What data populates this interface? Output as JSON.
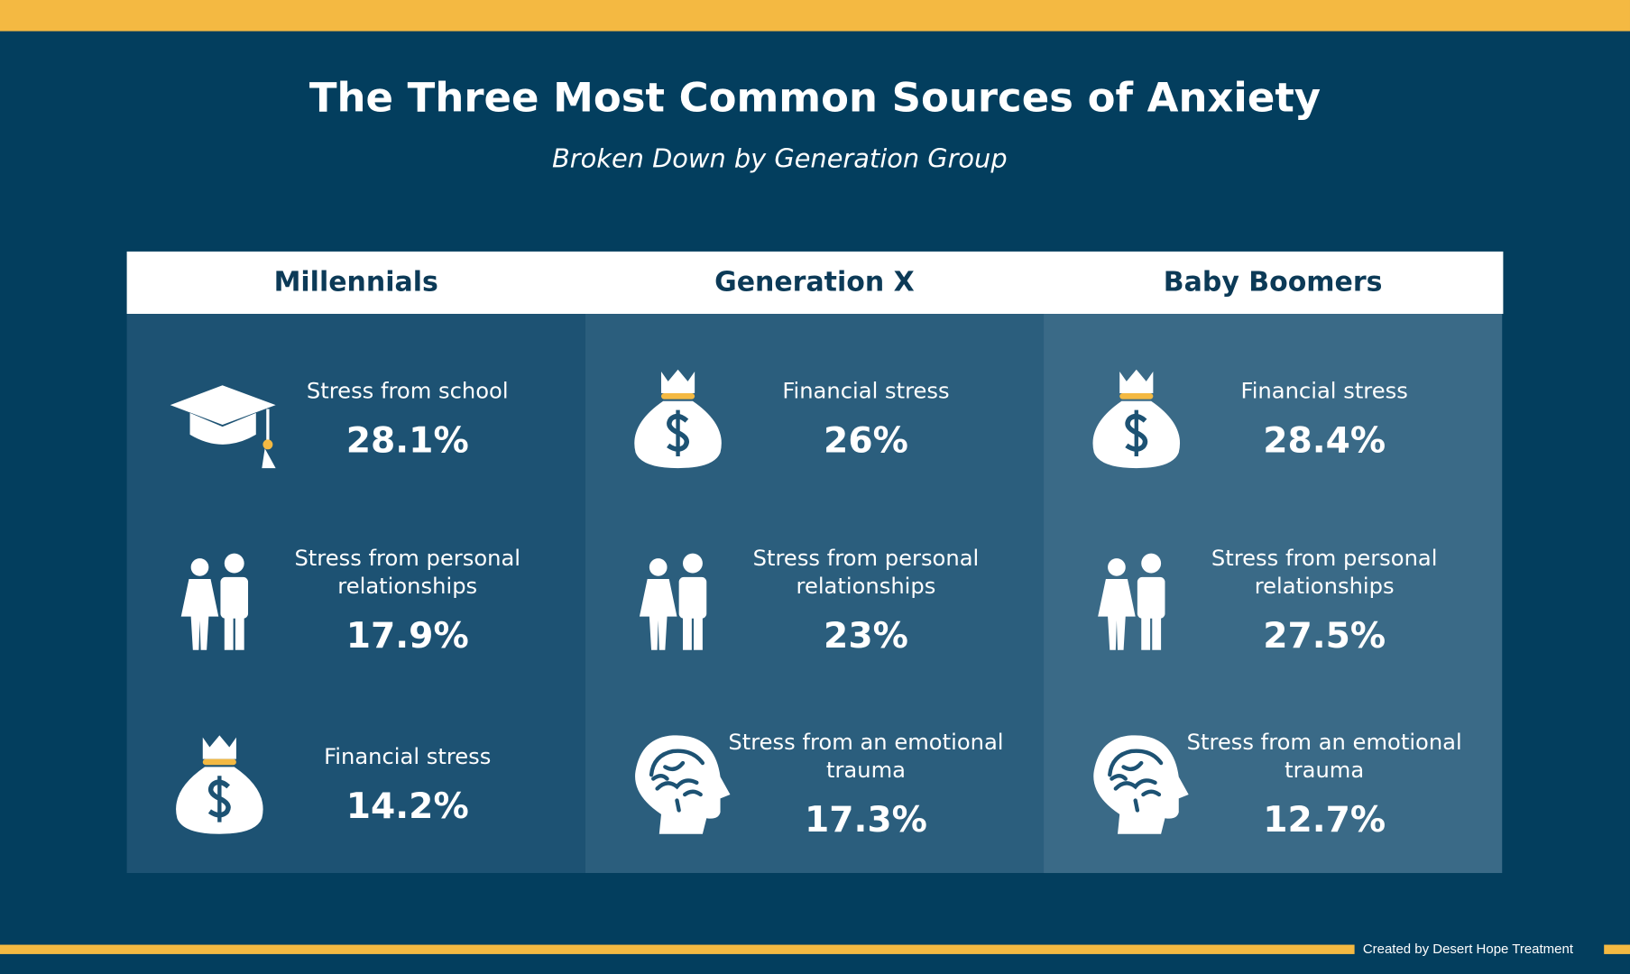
{
  "header": {
    "title": "The Three Most Common Sources of Anxiety",
    "subtitle": "Broken Down by Generation Group"
  },
  "table": {
    "columns": [
      {
        "name": "Millennials",
        "items": [
          {
            "label": "Stress from school",
            "value": "28.1%"
          },
          {
            "label": "Stress from personal relationships",
            "value": "17.9%"
          },
          {
            "label": "Financial stress",
            "value": "14.2%"
          }
        ]
      },
      {
        "name": "Generation X",
        "items": [
          {
            "label": "Financial stress",
            "value": "26%"
          },
          {
            "label": "Stress from personal relationships",
            "value": "23%"
          },
          {
            "label": "Stress from an emotional trauma",
            "value": "17.3%"
          }
        ]
      },
      {
        "name": "Baby Boomers",
        "items": [
          {
            "label": "Financial stress",
            "value": "28.4%"
          },
          {
            "label": "Stress from personal relationships",
            "value": "27.5%"
          },
          {
            "label": "Stress from an emotional trauma",
            "value": "12.7%"
          }
        ]
      }
    ]
  },
  "footer": {
    "credit": "Created by Desert Hope Treatment"
  }
}
